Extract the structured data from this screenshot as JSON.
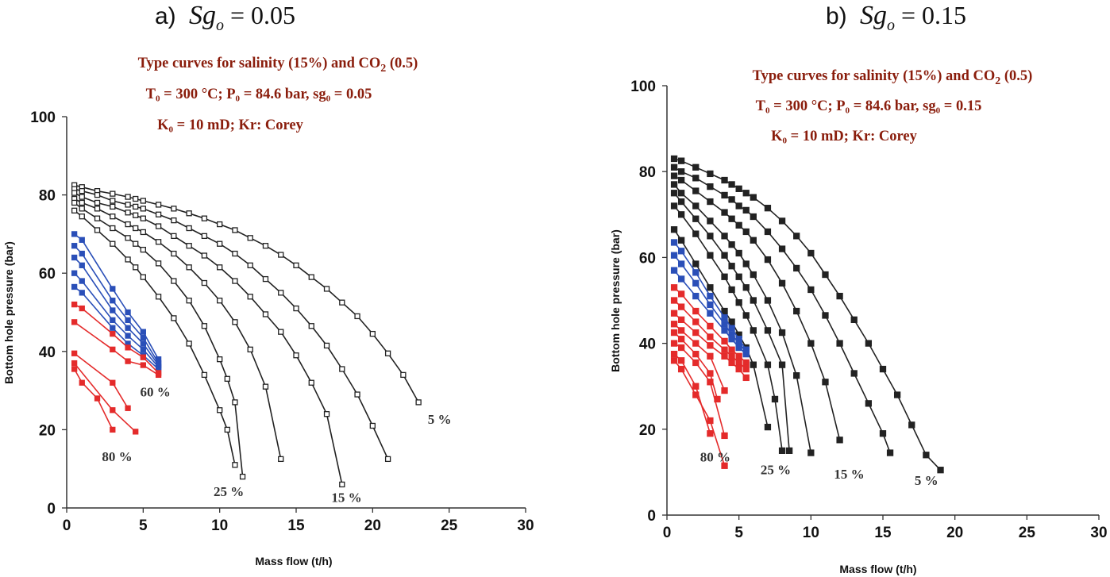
{
  "panels": [
    {
      "label": "a)",
      "var": "Sg",
      "var_sub": "o",
      "value_text": "= 0.05",
      "caption": [
        {
          "text": "Type curves for salinity (15%) and CO",
          "sub": "2",
          "tail": " (0.5)"
        },
        {
          "text": "T₀ = 300 °C;  P₀ = 84.6 bar,  sg₀ = 0.05"
        },
        {
          "text": "K₀ =  10 mD;     Kr: Corey"
        }
      ]
    },
    {
      "label": "b)",
      "var": "Sg",
      "var_sub": "o",
      "value_text": "= 0.15",
      "caption": [
        {
          "text": "Type curves for salinity (15%) and CO",
          "sub": "2",
          "tail": " (0.5)"
        },
        {
          "text": "T₀ = 300 °C;  P₀ = 84.6 bar,  sg₀ = 0.15"
        },
        {
          "text": "K₀ =  10 mD;     Kr: Corey"
        }
      ]
    }
  ],
  "chart_data": [
    {
      "type": "line",
      "xlabel": "Mass flow (t/h)",
      "ylabel": "Bottom hole pressure (bar)",
      "xlim": [
        0,
        30
      ],
      "ylim": [
        0,
        100
      ],
      "xticks": [
        0,
        5,
        10,
        15,
        20,
        25,
        30
      ],
      "yticks": [
        0,
        20,
        40,
        60,
        80,
        100
      ],
      "marker": "open-square",
      "colors": {
        "black": "#222222",
        "blue": "#2a4fb8",
        "red": "#e42b2b"
      },
      "annotations": [
        {
          "text": "5 %",
          "x": 23.6,
          "y": 21.5
        },
        {
          "text": "15 %",
          "x": 17.3,
          "y": 1.5
        },
        {
          "text": "25 %",
          "x": 9.6,
          "y": 3.0
        },
        {
          "text": "60 %",
          "x": 4.8,
          "y": 28.5
        },
        {
          "text": "80 %",
          "x": 2.3,
          "y": 12.0
        }
      ],
      "series": [
        {
          "color": "black",
          "x": [
            0.5,
            1,
            2,
            3,
            4,
            4.5,
            5,
            6,
            7,
            8,
            9,
            10,
            11,
            12,
            13,
            14,
            15,
            16,
            17,
            18,
            19,
            20,
            21,
            22,
            23
          ],
          "y": [
            82.5,
            82,
            81,
            80.3,
            79.5,
            79,
            78.5,
            77.5,
            76.5,
            75.3,
            74,
            72.5,
            71,
            69,
            67,
            64.7,
            62,
            59,
            56,
            52.5,
            49,
            44.5,
            39.5,
            34,
            27
          ]
        },
        {
          "color": "black",
          "x": [
            0.5,
            1,
            2,
            3,
            4,
            4.5,
            5,
            6,
            7,
            8,
            9,
            10,
            11,
            12,
            13,
            14,
            15,
            16,
            17,
            18,
            19,
            20,
            21
          ],
          "y": [
            81.5,
            81,
            80,
            78.5,
            77.5,
            77,
            76.5,
            75,
            73.5,
            71.5,
            69.5,
            67.5,
            65,
            62,
            58.5,
            55,
            51,
            46.5,
            41.5,
            35.5,
            29,
            21,
            12.5
          ]
        },
        {
          "color": "black",
          "x": [
            0.5,
            1,
            2,
            3,
            4,
            4.5,
            5,
            6,
            7,
            8,
            9,
            10,
            11,
            12,
            13,
            14,
            15,
            16,
            17,
            18
          ],
          "y": [
            80.5,
            79.5,
            78,
            77,
            75.5,
            74.8,
            74,
            72,
            69.5,
            67,
            64.5,
            61.5,
            58,
            54,
            49.5,
            45,
            39,
            32,
            24,
            6
          ]
        },
        {
          "color": "black",
          "x": [
            0.5,
            1,
            2,
            3,
            4,
            4.5,
            5,
            6,
            7,
            8,
            9,
            10,
            11,
            12,
            13,
            14
          ],
          "y": [
            79,
            78,
            76.5,
            74.5,
            72.5,
            71.5,
            70.5,
            68,
            65,
            61.5,
            57.5,
            53,
            47.5,
            40.5,
            31,
            12.5
          ]
        },
        {
          "color": "black",
          "x": [
            0.5,
            1,
            2,
            3,
            4,
            4.5,
            5,
            6,
            7,
            8,
            9,
            10,
            10.5,
            11,
            11.5
          ],
          "y": [
            78,
            76.5,
            74,
            71.5,
            69,
            67.5,
            66,
            62.5,
            58,
            53,
            46.5,
            38,
            33,
            27,
            8
          ]
        },
        {
          "color": "black",
          "x": [
            0.5,
            1,
            2,
            3,
            4,
            4.5,
            5,
            6,
            7,
            8,
            9,
            10,
            10.5,
            11
          ],
          "y": [
            76,
            74.5,
            71,
            67.5,
            63.5,
            61.5,
            59,
            54,
            48.5,
            42,
            34,
            25,
            20,
            11
          ]
        },
        {
          "color": "blue",
          "x": [
            0.5,
            1,
            3,
            4,
            5,
            6
          ],
          "y": [
            70,
            68.5,
            56,
            50,
            45,
            38
          ]
        },
        {
          "color": "blue",
          "x": [
            0.5,
            1,
            3,
            4,
            5,
            6
          ],
          "y": [
            67,
            65,
            53,
            48,
            43.5,
            37
          ]
        },
        {
          "color": "blue",
          "x": [
            0.5,
            1,
            3,
            4,
            5,
            6
          ],
          "y": [
            64,
            62,
            50.5,
            46,
            42,
            36.5
          ]
        },
        {
          "color": "blue",
          "x": [
            0.5,
            1,
            3,
            4,
            5,
            6
          ],
          "y": [
            60,
            58,
            48,
            44,
            40.5,
            36
          ]
        },
        {
          "color": "blue",
          "x": [
            0.5,
            1,
            3,
            4,
            5,
            6
          ],
          "y": [
            56.5,
            55,
            46,
            42,
            39,
            35.5
          ]
        },
        {
          "color": "red",
          "x": [
            0.5,
            1,
            3,
            4,
            5,
            6
          ],
          "y": [
            52,
            51,
            44.5,
            41,
            38.5,
            34.5
          ]
        },
        {
          "color": "red",
          "x": [
            0.5,
            3,
            4,
            5,
            6
          ],
          "y": [
            47.5,
            40.5,
            37.5,
            36.5,
            34
          ]
        },
        {
          "color": "red",
          "x": [
            0.5,
            3,
            4
          ],
          "y": [
            39.5,
            32,
            25.5
          ]
        },
        {
          "color": "red",
          "x": [
            0.5,
            3,
            4.5
          ],
          "y": [
            37,
            25,
            19.5
          ]
        },
        {
          "color": "red",
          "x": [
            0.5,
            1,
            2,
            3
          ],
          "y": [
            35.5,
            32,
            28,
            20
          ]
        }
      ]
    },
    {
      "type": "line",
      "xlabel": "Mass flow (t/h)",
      "ylabel": "Bottom hole pressure (bar)",
      "xlim": [
        0,
        30
      ],
      "ylim": [
        0,
        100
      ],
      "xticks": [
        0,
        5,
        10,
        15,
        20,
        25,
        30
      ],
      "yticks": [
        0,
        20,
        40,
        60,
        80,
        100
      ],
      "marker": "filled-square",
      "colors": {
        "black": "#222222",
        "blue": "#2a4fb8",
        "red": "#e42b2b"
      },
      "annotations": [
        {
          "text": "5 %",
          "x": 17.2,
          "y": 7.0
        },
        {
          "text": "15 %",
          "x": 11.6,
          "y": 8.5
        },
        {
          "text": "25 %",
          "x": 6.5,
          "y": 9.5
        },
        {
          "text": "80 %",
          "x": 2.3,
          "y": 12.5
        }
      ],
      "series": [
        {
          "color": "black",
          "x": [
            0.5,
            1,
            2,
            3,
            4,
            4.5,
            5,
            5.5,
            6,
            7,
            8,
            9,
            10,
            11,
            12,
            13,
            14,
            15,
            16,
            17,
            18,
            19
          ],
          "y": [
            83,
            82.5,
            81,
            79.5,
            78,
            77,
            76,
            75,
            74,
            71.5,
            68.5,
            65,
            61,
            56,
            51,
            45.5,
            40,
            34,
            28,
            21,
            14,
            10.5
          ]
        },
        {
          "color": "black",
          "x": [
            0.5,
            1,
            2,
            3,
            4,
            4.5,
            5,
            5.5,
            6,
            7,
            8,
            9,
            10,
            11,
            12,
            13,
            14,
            15,
            15.5
          ],
          "y": [
            81,
            80,
            78.5,
            76.5,
            74.5,
            73.5,
            72,
            71,
            69.5,
            66,
            62,
            57.5,
            52.5,
            46.5,
            40,
            33,
            26,
            19,
            14.5
          ]
        },
        {
          "color": "black",
          "x": [
            0.5,
            1,
            2,
            3,
            4,
            4.5,
            5,
            5.5,
            6,
            7,
            8,
            9,
            10,
            11,
            12
          ],
          "y": [
            79,
            78,
            75.5,
            73,
            70.5,
            69,
            67.5,
            66,
            64,
            59.5,
            54,
            47.5,
            40,
            31,
            17.5
          ]
        },
        {
          "color": "black",
          "x": [
            0.5,
            1,
            2,
            3,
            4,
            4.5,
            5,
            5.5,
            6,
            7,
            8,
            9,
            10
          ],
          "y": [
            77,
            75,
            72,
            68.5,
            65,
            63,
            61,
            58.5,
            56,
            50,
            42.5,
            32.5,
            14.5
          ]
        },
        {
          "color": "black",
          "x": [
            0.5,
            1,
            2,
            3,
            4,
            4.5,
            5,
            5.5,
            6,
            7,
            8,
            8.5
          ],
          "y": [
            75,
            73,
            69,
            65,
            60.5,
            58,
            55.5,
            53,
            50,
            43,
            35,
            15
          ]
        },
        {
          "color": "black",
          "x": [
            0.5,
            1,
            2,
            3,
            4,
            4.5,
            5,
            5.5,
            6,
            7,
            7.5,
            8
          ],
          "y": [
            72,
            70,
            65.5,
            60.5,
            55.5,
            52.5,
            49.5,
            46.5,
            43,
            35,
            27,
            15
          ]
        },
        {
          "color": "black",
          "x": [
            0.5,
            1,
            2,
            3,
            4,
            4.5,
            5,
            5.5,
            6,
            7
          ],
          "y": [
            66.5,
            64,
            58.5,
            53,
            47.5,
            45,
            42,
            39,
            35,
            20.5
          ]
        },
        {
          "color": "blue",
          "x": [
            0.5,
            1,
            2,
            3,
            4,
            4.5,
            5,
            5.5
          ],
          "y": [
            63.5,
            61.5,
            56.5,
            51,
            46,
            43.5,
            41,
            38.5
          ]
        },
        {
          "color": "blue",
          "x": [
            0.5,
            1,
            2,
            3,
            4,
            4.5,
            5,
            5.5
          ],
          "y": [
            60.5,
            58.5,
            54,
            49,
            44.5,
            42,
            40,
            38
          ]
        },
        {
          "color": "blue",
          "x": [
            0.5,
            1,
            2,
            3,
            4,
            4.5,
            5,
            5.5
          ],
          "y": [
            57,
            55,
            51,
            47,
            43,
            41,
            39,
            37.5
          ]
        },
        {
          "color": "red",
          "x": [
            0.5,
            1,
            2,
            3,
            4,
            4.5,
            5,
            5.5
          ],
          "y": [
            53,
            51.5,
            47.5,
            44,
            40.5,
            38.5,
            37,
            35.5
          ]
        },
        {
          "color": "red",
          "x": [
            0.5,
            1,
            2,
            3,
            4,
            4.5,
            5,
            5.5
          ],
          "y": [
            50,
            48.5,
            45,
            41.5,
            38.5,
            37,
            35.5,
            34
          ]
        },
        {
          "color": "red",
          "x": [
            0.5,
            1,
            2,
            3,
            4,
            4.5,
            5,
            5.5
          ],
          "y": [
            47,
            45.5,
            42.5,
            39.5,
            37,
            35.5,
            34,
            32
          ]
        },
        {
          "color": "red",
          "x": [
            0.5,
            1,
            2,
            3,
            4
          ],
          "y": [
            44.5,
            43,
            40,
            37,
            29
          ]
        },
        {
          "color": "red",
          "x": [
            0.5,
            1,
            2,
            3,
            3.5
          ],
          "y": [
            42.5,
            41,
            37.5,
            33,
            27
          ]
        },
        {
          "color": "red",
          "x": [
            0.5,
            1,
            2,
            3,
            4
          ],
          "y": [
            40,
            39,
            35.5,
            31,
            18.5
          ]
        },
        {
          "color": "red",
          "x": [
            0.5,
            1,
            2,
            3
          ],
          "y": [
            37.5,
            36,
            30,
            19
          ]
        },
        {
          "color": "red",
          "x": [
            0.5,
            1,
            2,
            3,
            4
          ],
          "y": [
            36,
            34,
            28,
            22,
            11.5
          ]
        }
      ]
    }
  ]
}
